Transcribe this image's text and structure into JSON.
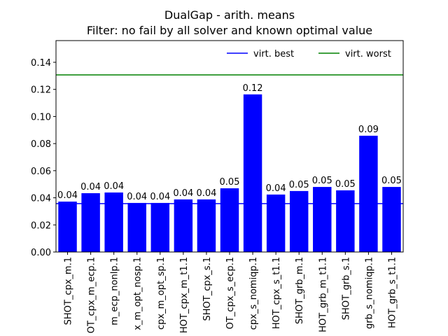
{
  "chart_data": {
    "type": "bar",
    "title": "DualGap - arith. means",
    "subtitle": "Filter: no fail by all solver and known optimal value",
    "categories": [
      "SHOT_cpx_m.1",
      "OT_cpx_m_ecp.1",
      "m_ecp_nonlp.1",
      "x_m_opt_nosp.1",
      "cpx_m_opt_sp.1",
      "HOT_cpx_m_t1.1",
      "SHOT_cpx_s.1",
      "OT_cpx_s_ecp.1",
      "cpx_s_nomiqp.1",
      "HOT_cpx_s_t1.1",
      "SHOT_grb_m.1",
      "HOT_grb_m_t1.1",
      "SHOT_grb_s.1",
      "grb_s_nomiqp.1",
      "HOT_grb_s_t1.1"
    ],
    "values": [
      0.0372,
      0.0434,
      0.0439,
      0.0362,
      0.0362,
      0.0388,
      0.0388,
      0.047,
      0.1163,
      0.0424,
      0.045,
      0.048,
      0.0455,
      0.0858,
      0.048
    ],
    "value_labels": [
      "0.04",
      "0.04",
      "0.04",
      "0.04",
      "0.04",
      "0.04",
      "0.04",
      "0.05",
      "0.12",
      "0.04",
      "0.05",
      "0.05",
      "0.05",
      "0.09",
      "0.05"
    ],
    "color": "#0000ff",
    "reference_lines": [
      {
        "name": "virt. best",
        "color": "#0000ff",
        "value": 0.0357
      },
      {
        "name": "virt. worst",
        "color": "#008000",
        "value": 0.1307
      }
    ],
    "legend": "upper right",
    "ylim": [
      0,
      0.156
    ],
    "yticks": [
      {
        "value": 0,
        "label": "0.00"
      },
      {
        "value": 0.02,
        "label": "0.02"
      },
      {
        "value": 0.04,
        "label": "0.04"
      },
      {
        "value": 0.06,
        "label": "0.06"
      },
      {
        "value": 0.08,
        "label": "0.08"
      },
      {
        "value": 0.1,
        "label": "0.10"
      },
      {
        "value": 0.12,
        "label": "0.12"
      },
      {
        "value": 0.14,
        "label": "0.14"
      }
    ]
  }
}
